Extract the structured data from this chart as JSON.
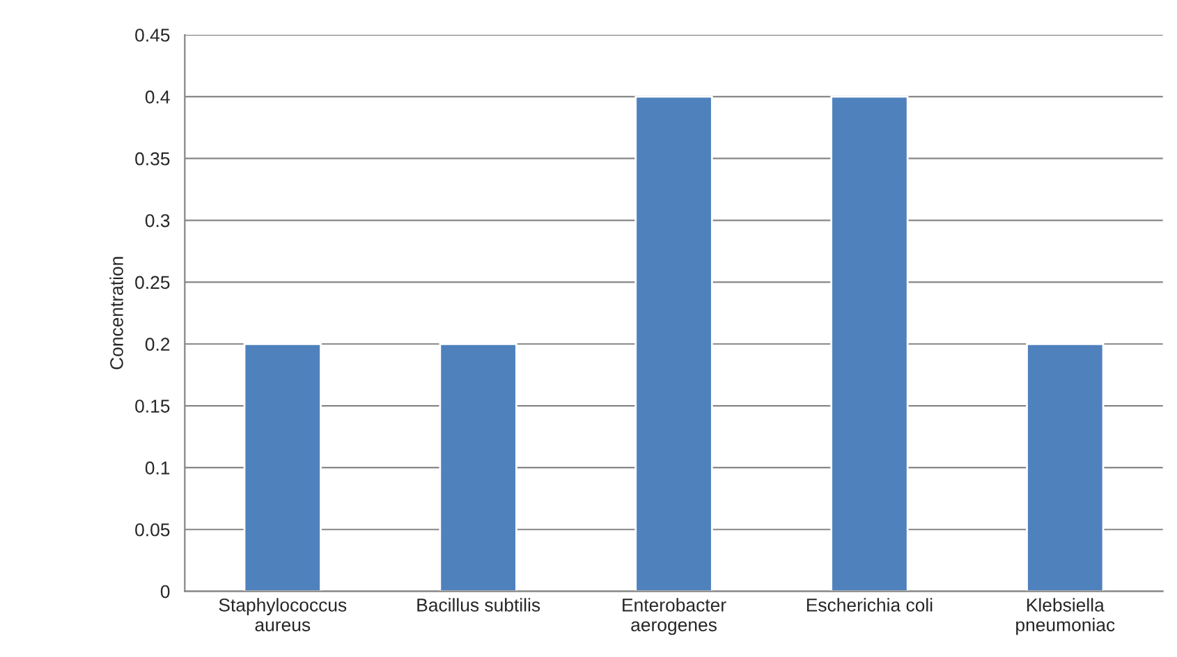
{
  "chart_data": {
    "type": "bar",
    "categories": [
      "Staphylococcus\naureus",
      "Bacillus subtilis",
      "Enterobacter\naerogenes",
      "Escherichia coli",
      "Klebsiella\npneumoniac"
    ],
    "values": [
      0.2,
      0.2,
      0.4,
      0.4,
      0.2
    ],
    "color": "#4f81bd",
    "ylabel": "Concentration",
    "ylim": [
      0,
      0.45
    ],
    "yticks": [
      0,
      0.05,
      0.1,
      0.15,
      0.2,
      0.25,
      0.3,
      0.35,
      0.4,
      0.45
    ],
    "grid": "y",
    "legend": false
  }
}
